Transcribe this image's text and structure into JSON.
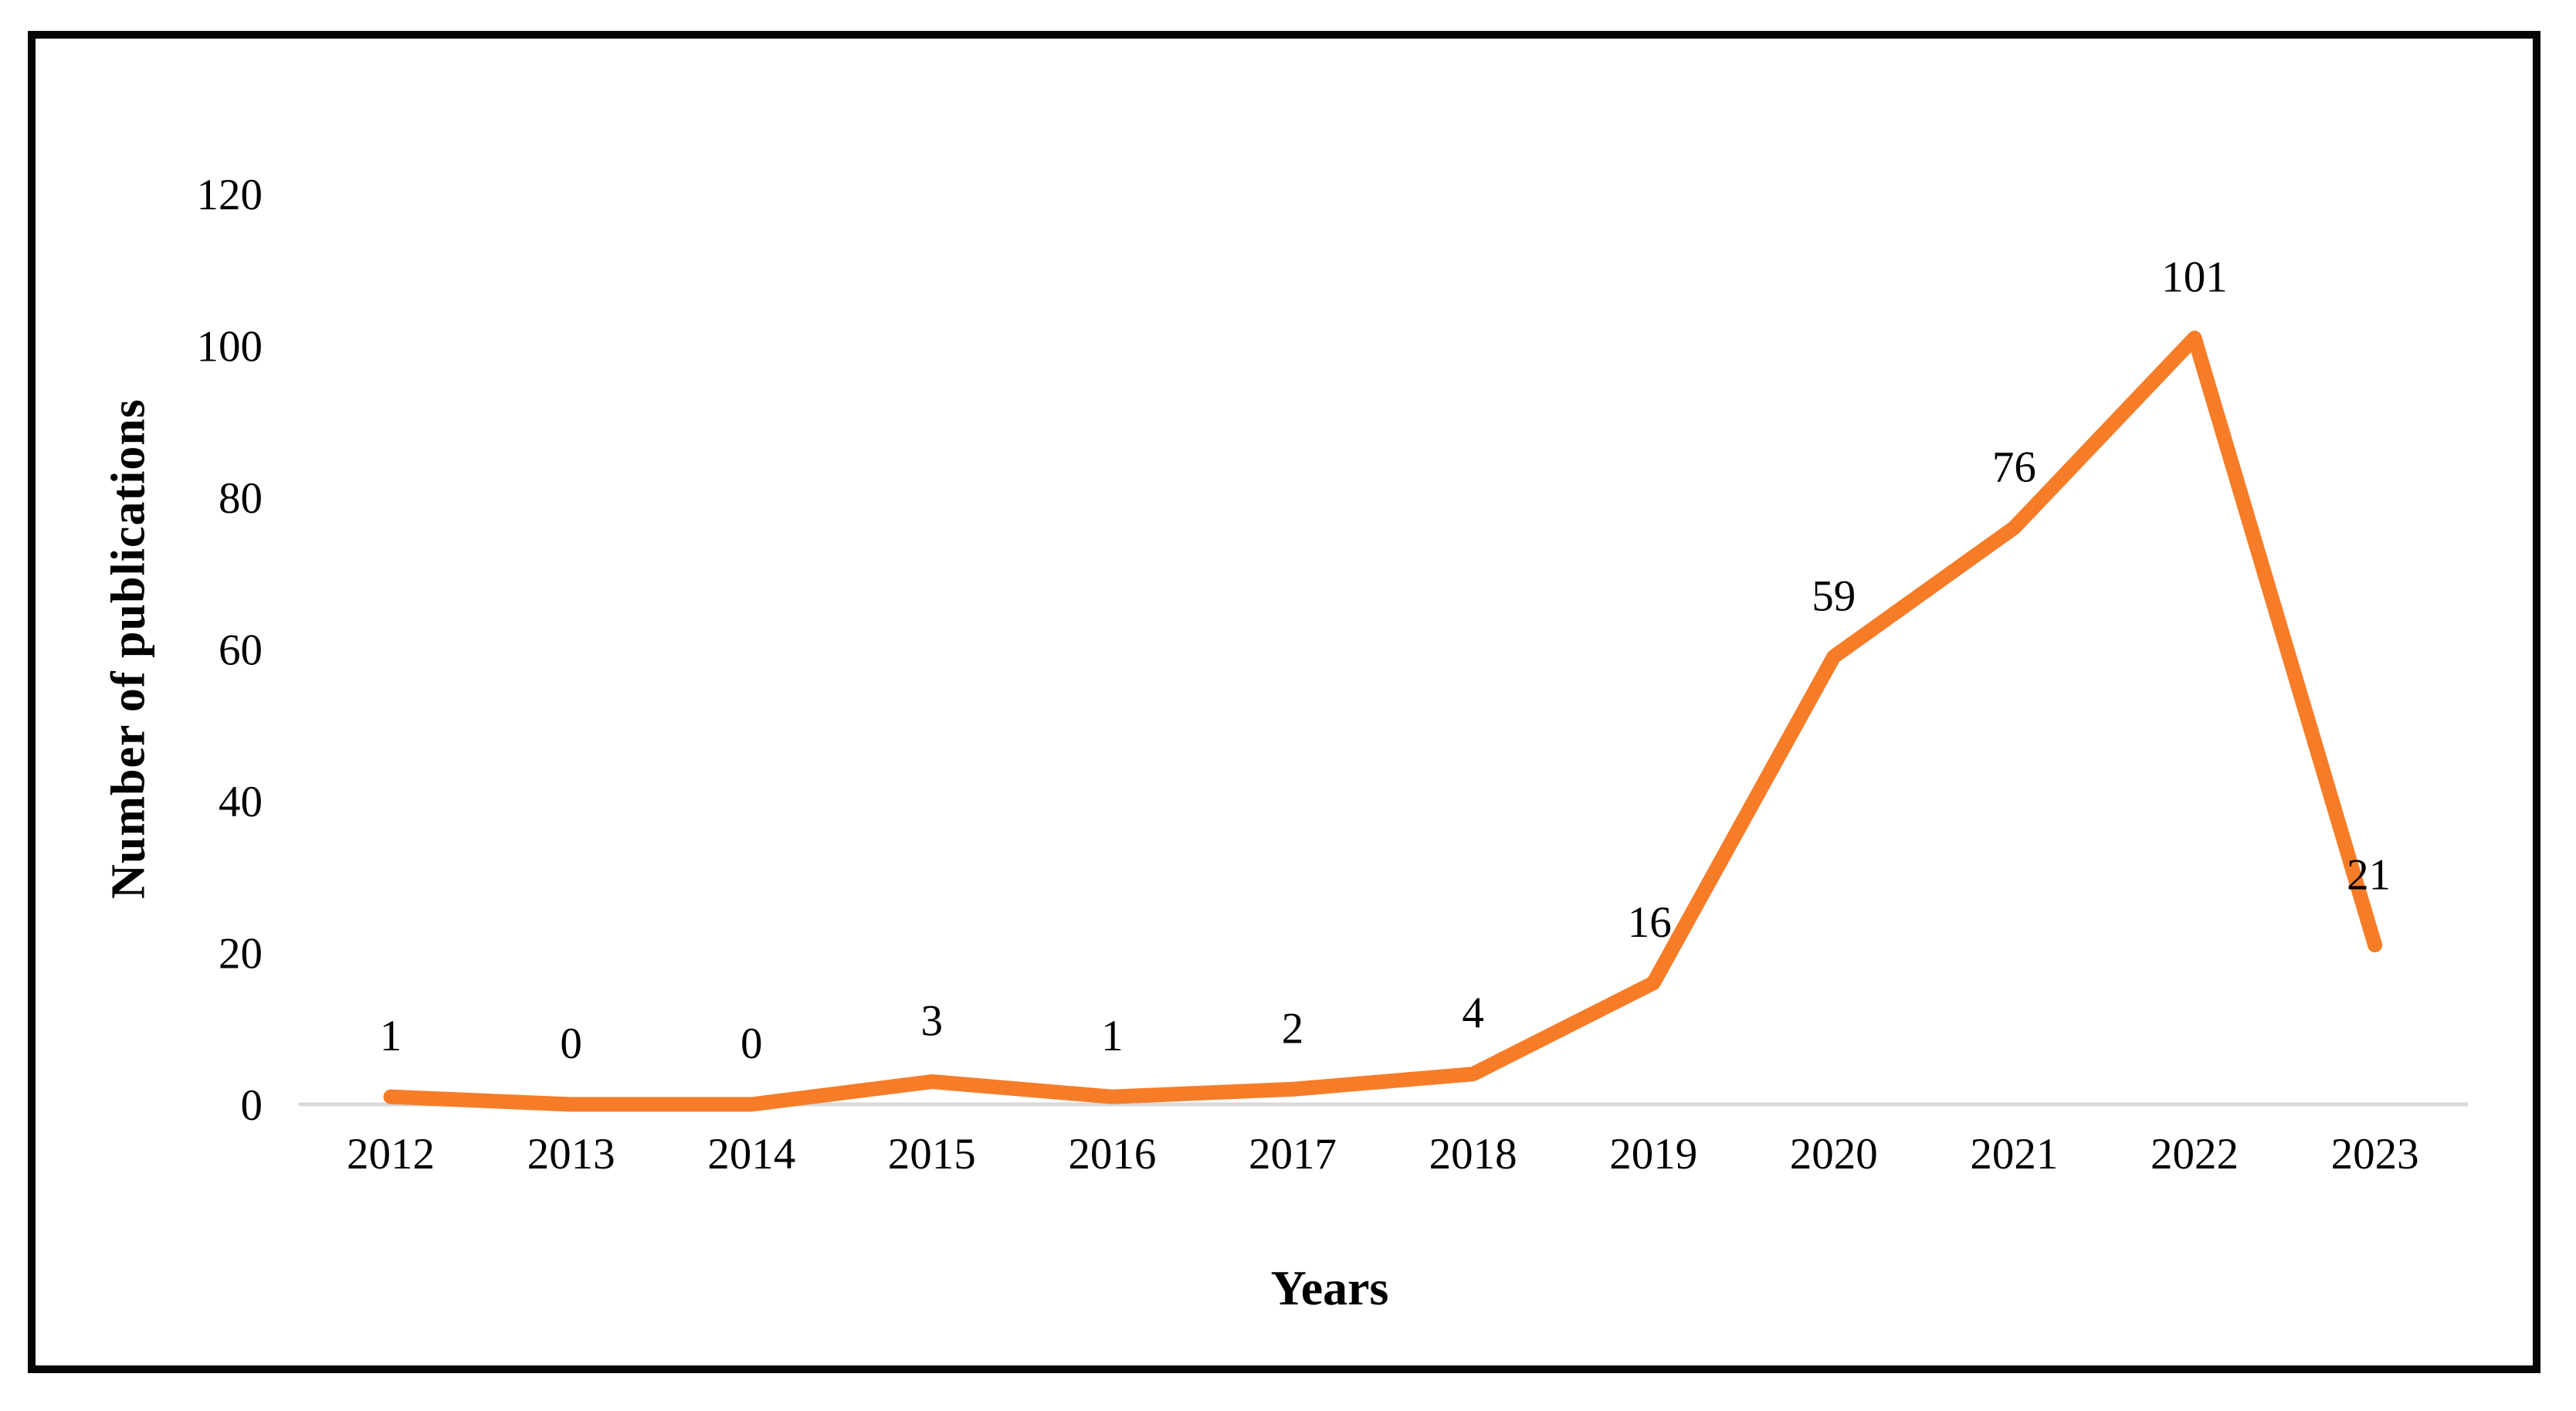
{
  "chart_data": {
    "type": "line",
    "categories": [
      "2012",
      "2013",
      "2014",
      "2015",
      "2016",
      "2017",
      "2018",
      "2019",
      "2020",
      "2021",
      "2022",
      "2023"
    ],
    "values": [
      1,
      0,
      0,
      3,
      1,
      2,
      4,
      16,
      59,
      76,
      101,
      21
    ],
    "xlabel": "Years",
    "ylabel": "Number of publications",
    "ylim": [
      0,
      120
    ],
    "yticks": [
      0,
      20,
      40,
      60,
      80,
      100,
      120
    ],
    "grid": false,
    "legend": "none",
    "data_labels_shown": true,
    "colors": {
      "line": "#F77C28",
      "axis_line": "#D9D9D9",
      "text": "#000000",
      "frame": "#060606",
      "background": "#FFFFFF"
    }
  }
}
